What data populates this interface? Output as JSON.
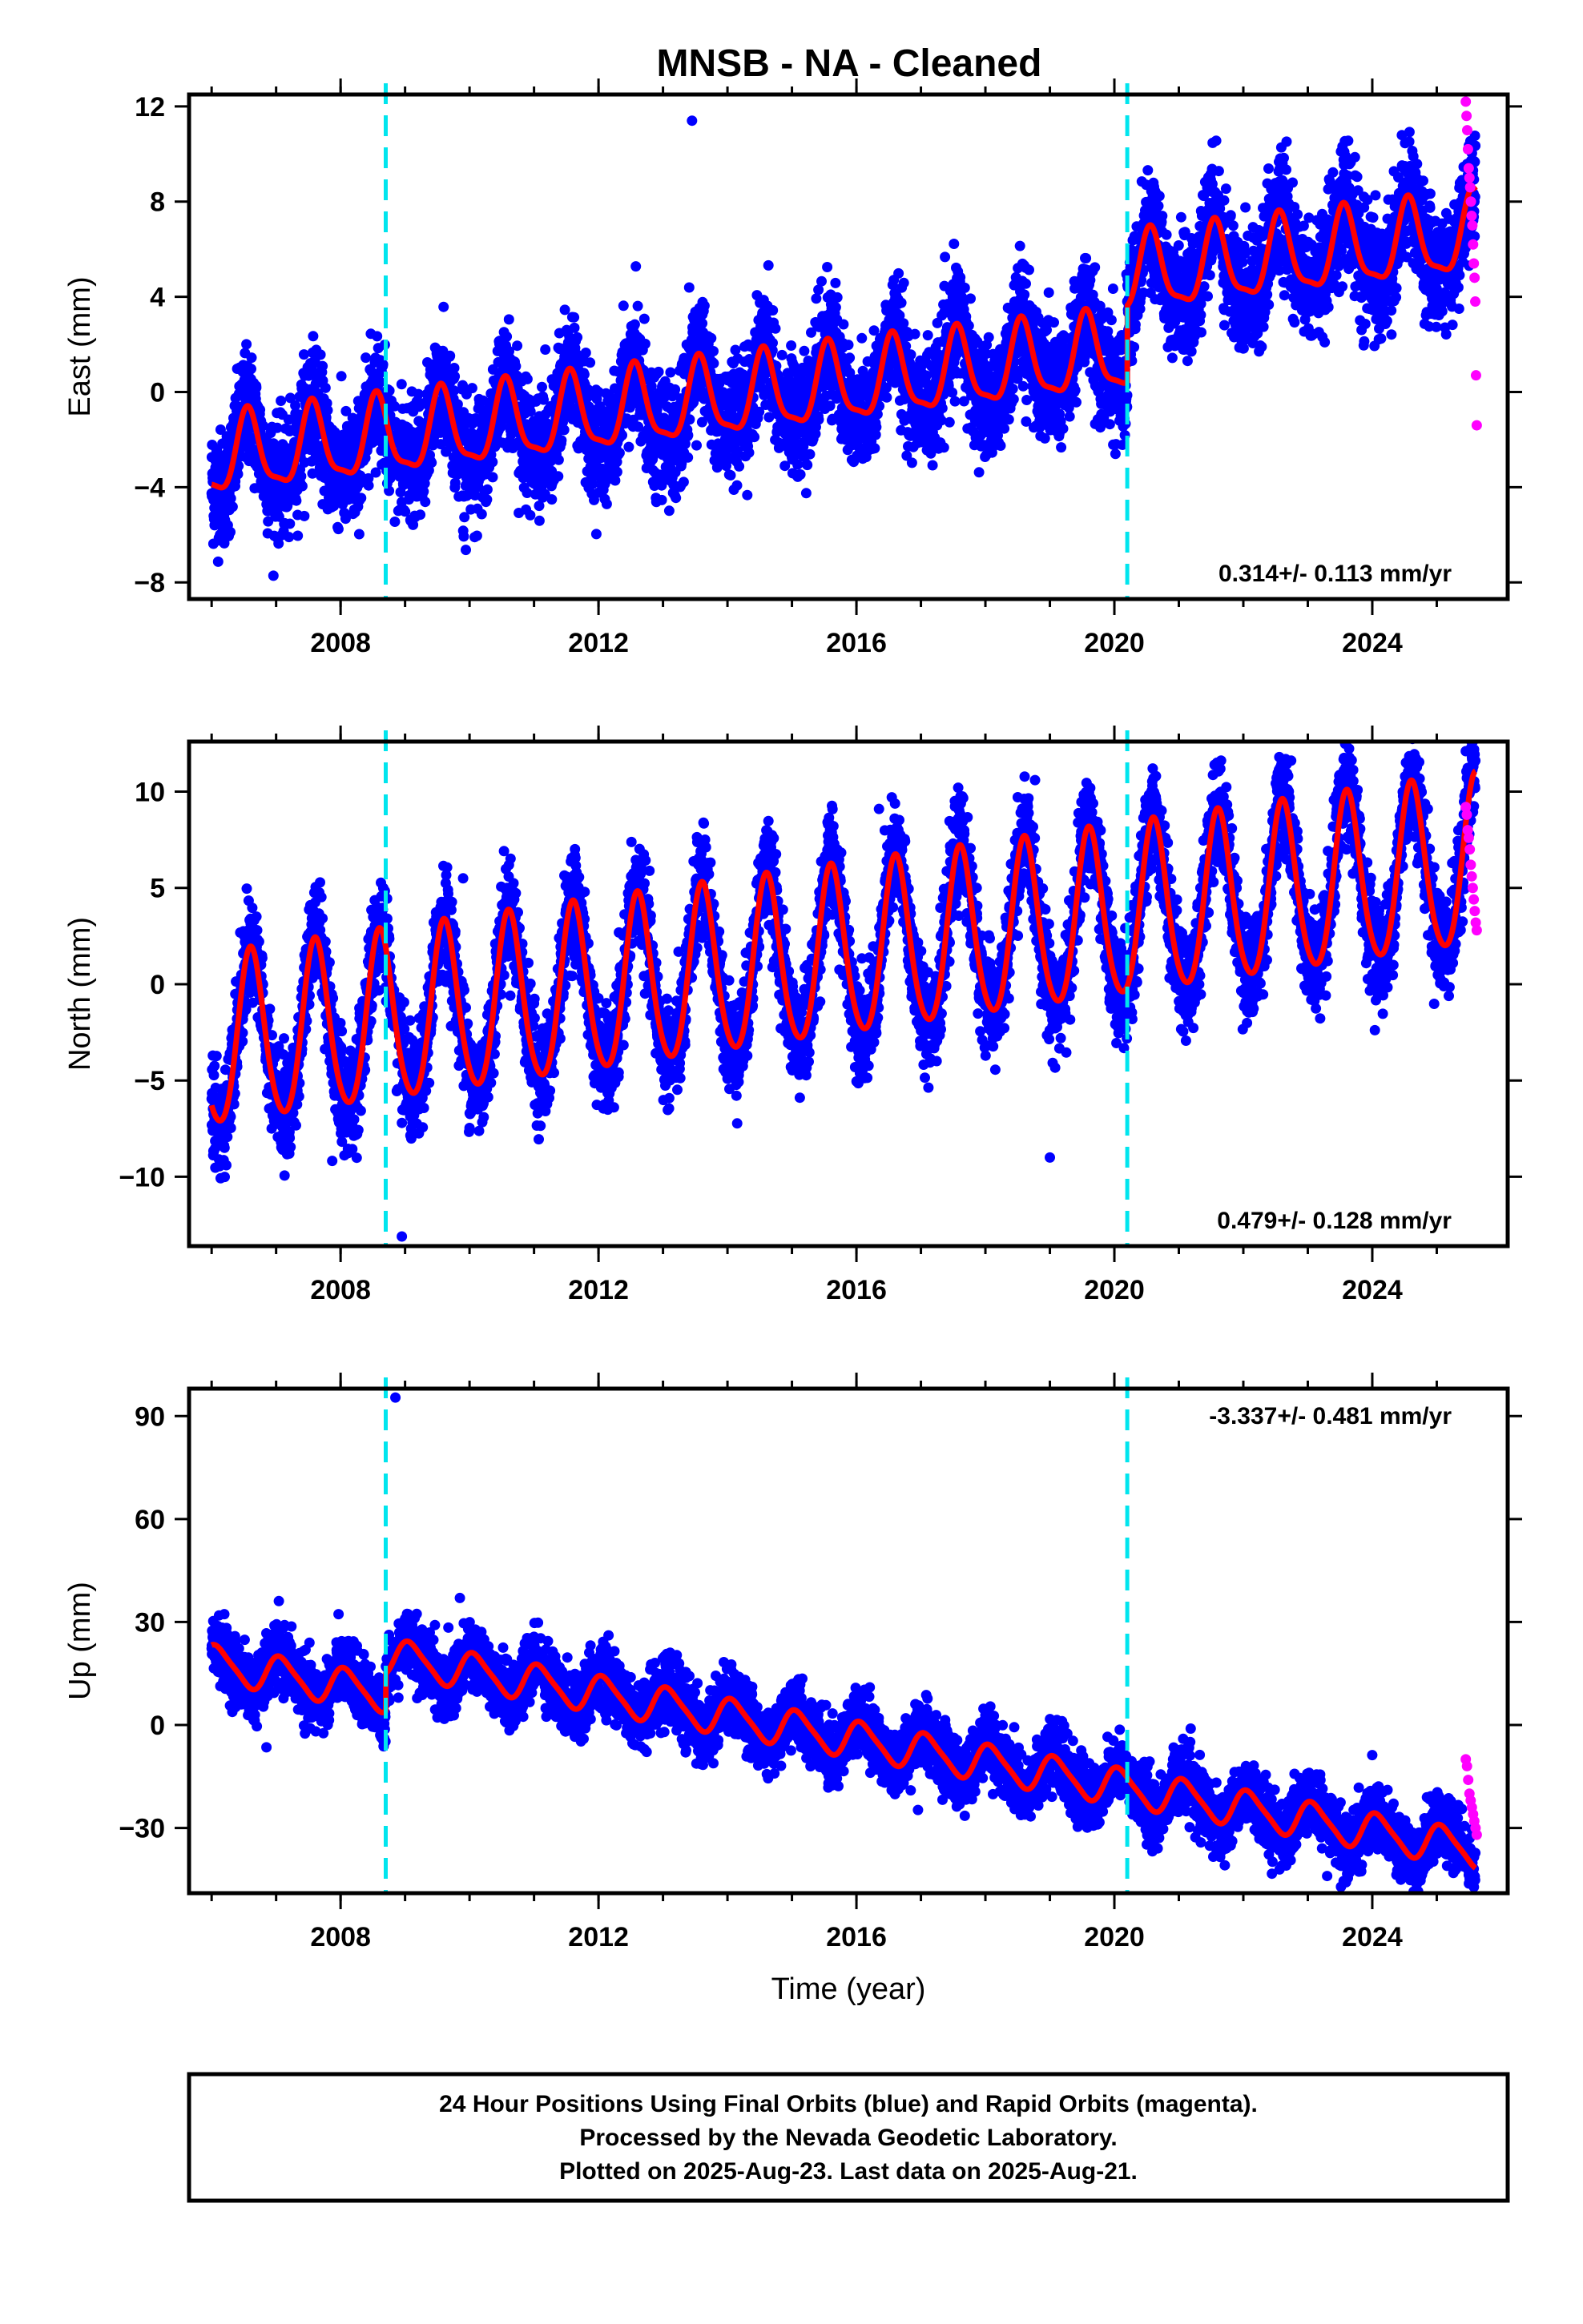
{
  "title": "MNSB  - NA - Cleaned",
  "colors": {
    "final_orbits": "#0000ff",
    "rapid_orbits": "#ff00ff",
    "model_fit": "#ff0000",
    "equipment_change": "#00e5ee"
  },
  "chart_data": [
    {
      "type": "scatter",
      "ylabel": "East (mm)",
      "xlim": [
        2005.65,
        2026.1
      ],
      "ylim": [
        -8.7,
        12.5
      ],
      "yticks": [
        -8,
        -4,
        0,
        4,
        8,
        12
      ],
      "xticks": [
        2008,
        2012,
        2016,
        2020,
        2024
      ],
      "rate_label": "0.314+/- 0.113 mm/yr",
      "rate_position": "bottom-right",
      "breaks": [
        2008.7,
        2020.2
      ],
      "model": {
        "start": 2006.0,
        "end": 2025.6,
        "rate": 0.314,
        "offset_at_start": -2.8,
        "annual_amp": 1.6,
        "annual_phase": 4.3,
        "semi_amp": 0.45,
        "semi_phase": 1.0,
        "steps": [
          {
            "t": 2020.2,
            "size": 3.2
          }
        ]
      },
      "final_orbits": {
        "scatter_sd": 1.2,
        "outliers": [
          {
            "x": 2013.45,
            "y": 11.4
          }
        ]
      },
      "rapid_orbits": {
        "x_range": [
          2025.45,
          2025.62
        ],
        "values": [
          12.2,
          11.6,
          11.0,
          10.2,
          9.4,
          9.0,
          8.6,
          8.0,
          7.4,
          7.0,
          6.2,
          5.4,
          4.8,
          3.8,
          0.7,
          -1.4
        ]
      }
    },
    {
      "type": "scatter",
      "ylabel": "North (mm)",
      "xlim": [
        2005.65,
        2026.1
      ],
      "ylim": [
        -13.6,
        12.6
      ],
      "yticks": [
        -10,
        -5,
        0,
        5,
        10
      ],
      "xticks": [
        2008,
        2012,
        2016,
        2020,
        2024
      ],
      "rate_label": "0.479+/- 0.128 mm/yr",
      "rate_position": "bottom-right",
      "breaks": [
        2008.7,
        2020.2
      ],
      "model": {
        "start": 2006.0,
        "end": 2025.6,
        "rate": 0.479,
        "offset_at_start": -3.2,
        "annual_amp": 4.4,
        "annual_phase": 4.0,
        "semi_amp": 0.5,
        "semi_phase": 0.5,
        "steps": []
      },
      "final_orbits": {
        "scatter_sd": 1.3,
        "outliers": [
          {
            "x": 2009.9,
            "y": 5.5
          },
          {
            "x": 2008.95,
            "y": -13.1
          },
          {
            "x": 2016.35,
            "y": 9.1
          },
          {
            "x": 2019.0,
            "y": -9.0
          },
          {
            "x": 2025.45,
            "y": 12.1
          }
        ]
      },
      "rapid_orbits": {
        "x_range": [
          2025.45,
          2025.62
        ],
        "values": [
          9.2,
          8.8,
          8.0,
          7.6,
          7.0,
          6.2,
          5.6,
          5.0,
          4.4,
          3.8,
          3.2,
          2.8
        ]
      }
    },
    {
      "type": "scatter",
      "ylabel": "Up (mm)",
      "xlabel": "Time (year)",
      "xlim": [
        2005.65,
        2026.1
      ],
      "ylim": [
        -49,
        98
      ],
      "yticks": [
        -30,
        0,
        30,
        60,
        90
      ],
      "xticks": [
        2008,
        2012,
        2016,
        2020,
        2024
      ],
      "rate_label": "-3.337+/- 0.481 mm/yr",
      "rate_position": "top-right",
      "breaks": [
        2008.7,
        2020.2
      ],
      "model": {
        "start": 2006.0,
        "end": 2025.6,
        "rate": -3.337,
        "offset_at_start": 18.0,
        "annual_amp": 5.2,
        "annual_phase": 1.0,
        "semi_amp": 1.0,
        "semi_phase": 2.0,
        "steps": [
          {
            "t": 2008.7,
            "size": 11.0
          }
        ]
      },
      "final_orbits": {
        "scatter_sd": 4.5,
        "outliers": [
          {
            "x": 2008.85,
            "y": 95.4
          },
          {
            "x": 2009.85,
            "y": 37.0
          },
          {
            "x": 2006.85,
            "y": -6.5
          },
          {
            "x": 2023.3,
            "y": -44.0
          }
        ]
      },
      "rapid_orbits": {
        "x_range": [
          2025.45,
          2025.62
        ],
        "values": [
          -10,
          -12,
          -16,
          -20,
          -22,
          -24,
          -26,
          -28,
          -30,
          -32
        ]
      }
    }
  ],
  "footer": {
    "line1": "24 Hour Positions Using Final Orbits (blue) and Rapid Orbits (magenta).",
    "line2": "Processed by the Nevada Geodetic Laboratory.",
    "line3": "Plotted on 2025-Aug-23. Last data on 2025-Aug-21."
  }
}
